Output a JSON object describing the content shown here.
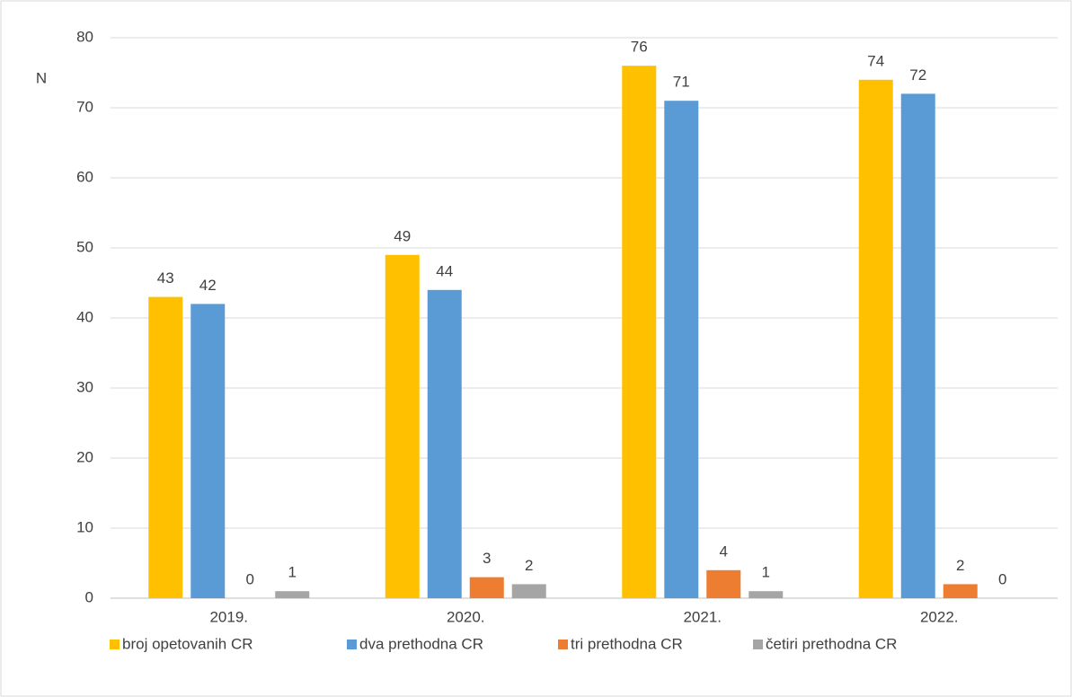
{
  "chart_data": {
    "type": "bar",
    "y_label": "N",
    "categories": [
      "2019.",
      "2020.",
      "2021.",
      "2022."
    ],
    "series": [
      {
        "name": "broj opetovanih CR",
        "color": "#FFC000",
        "values": [
          43,
          49,
          76,
          74
        ]
      },
      {
        "name": "dva prethodna CR",
        "color": "#5B9BD5",
        "values": [
          42,
          44,
          71,
          72
        ]
      },
      {
        "name": "tri prethodna CR",
        "color": "#ED7D31",
        "values": [
          0,
          3,
          4,
          2
        ]
      },
      {
        "name": "četiri prethodna CR",
        "color": "#A5A5A5",
        "values": [
          1,
          2,
          1,
          0
        ]
      }
    ],
    "ylim": [
      0,
      80
    ],
    "yticks": [
      0,
      10,
      20,
      30,
      40,
      50,
      60,
      70,
      80
    ],
    "grid": true,
    "legend": "bottom"
  }
}
